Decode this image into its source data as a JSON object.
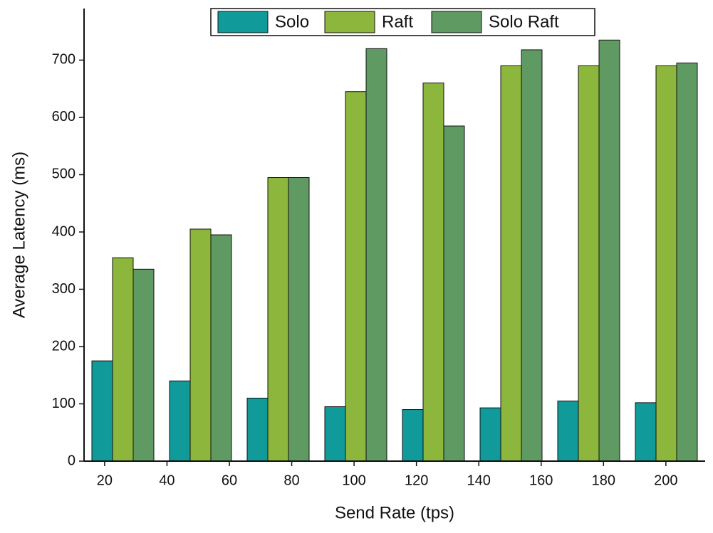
{
  "chart_data": {
    "type": "bar",
    "x_label": "Send Rate (tps)",
    "y_label": "Average Latency (ms)",
    "categories": [
      null,
      null,
      null,
      null,
      null,
      null,
      null,
      null
    ],
    "series": [
      {
        "name": "Solo",
        "color": "#119a9a",
        "values": [
          175,
          140,
          110,
          95,
          90,
          93,
          105,
          102
        ]
      },
      {
        "name": "Raft",
        "color": "#8db63c",
        "values": [
          355,
          405,
          495,
          645,
          660,
          690,
          690,
          690
        ]
      },
      {
        "name": "Solo Raft",
        "color": "#5e9a62",
        "values": [
          335,
          395,
          495,
          720,
          585,
          718,
          735,
          695
        ]
      }
    ],
    "xlim": [
      13.4,
      212.6
    ],
    "xticks": [
      20,
      40,
      60,
      80,
      100,
      120,
      140,
      160,
      180,
      200
    ],
    "ylim": [
      0,
      790
    ],
    "yticks": [
      0,
      100,
      200,
      300,
      400,
      500,
      600,
      700
    ],
    "legend": "top"
  }
}
